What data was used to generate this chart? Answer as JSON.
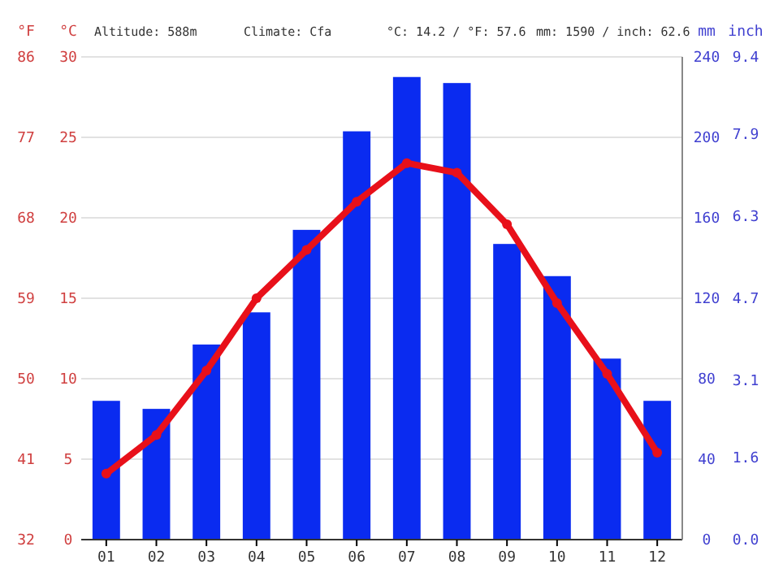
{
  "chart_data": {
    "type": "bar",
    "categories": [
      "01",
      "02",
      "03",
      "04",
      "05",
      "06",
      "07",
      "08",
      "09",
      "10",
      "11",
      "12"
    ],
    "series": [
      {
        "axis": "y2",
        "color": "#0a2bf0",
        "values": [
          69,
          65,
          97,
          113,
          154,
          203,
          230,
          227,
          147,
          131,
          90,
          69
        ]
      },
      {
        "type": "line",
        "axis": "y",
        "color": "#e8101a",
        "marker": "circle",
        "values": [
          4.1,
          6.5,
          10.5,
          15.0,
          18.0,
          21.0,
          23.4,
          22.8,
          19.6,
          14.7,
          10.3,
          5.4
        ]
      }
    ],
    "ylabel": "°C",
    "ylim": [
      0,
      30
    ],
    "yticks": [
      0,
      5,
      10,
      15,
      20,
      25,
      30
    ],
    "y2label": "mm",
    "y2lim": [
      0,
      240
    ],
    "y2ticks": [
      0,
      40,
      80,
      120,
      160,
      200,
      240
    ],
    "y3label": "inch",
    "y3lim": [
      0,
      9.4
    ],
    "y3ticks": [
      {
        "value": 0,
        "label": "0.0"
      },
      1.6,
      3.1,
      4.7,
      6.3,
      7.9,
      9.4
    ],
    "annotations": [
      "Altitude: 588m",
      "Climate: Cfa",
      "°C: 14.2 / °F: 57.6",
      "mm: 1590 / inch: 62.6",
      "°F",
      "32",
      "41",
      "50",
      "59",
      "68",
      "77",
      "86"
    ],
    "grid": "y"
  }
}
